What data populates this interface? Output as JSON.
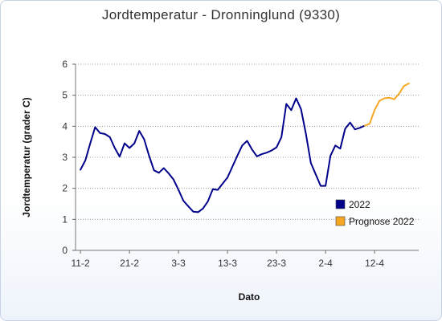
{
  "chart_data": {
    "type": "line",
    "title": "Jordtemperatur - Dronninglund (9330)",
    "xlabel": "Dato",
    "ylabel": "Jordtemperatur (grader C)",
    "ylim": [
      0,
      6
    ],
    "yticks": [
      0,
      1,
      2,
      3,
      4,
      5,
      6
    ],
    "x_tick_labels": [
      "11-2",
      "21-2",
      "3-3",
      "13-3",
      "23-3",
      "2-4",
      "12-4"
    ],
    "grid": "horizontal dotted",
    "legend_position": "right",
    "series": [
      {
        "name": "2022",
        "color": "#00008b",
        "points": [
          [
            1,
            2.6
          ],
          [
            2,
            2.9
          ],
          [
            3,
            3.45
          ],
          [
            4,
            3.97
          ],
          [
            5,
            3.78
          ],
          [
            6,
            3.75
          ],
          [
            7,
            3.65
          ],
          [
            8,
            3.3
          ],
          [
            9,
            3.02
          ],
          [
            10,
            3.45
          ],
          [
            11,
            3.3
          ],
          [
            12,
            3.45
          ],
          [
            13,
            3.85
          ],
          [
            14,
            3.58
          ],
          [
            15,
            3.05
          ],
          [
            16,
            2.58
          ],
          [
            17,
            2.5
          ],
          [
            18,
            2.65
          ],
          [
            19,
            2.48
          ],
          [
            20,
            2.28
          ],
          [
            21,
            1.95
          ],
          [
            22,
            1.6
          ],
          [
            23,
            1.42
          ],
          [
            24,
            1.25
          ],
          [
            25,
            1.23
          ],
          [
            26,
            1.35
          ],
          [
            27,
            1.58
          ],
          [
            28,
            1.97
          ],
          [
            29,
            1.95
          ],
          [
            30,
            2.15
          ],
          [
            31,
            2.35
          ],
          [
            32,
            2.7
          ],
          [
            33,
            3.05
          ],
          [
            34,
            3.38
          ],
          [
            35,
            3.53
          ],
          [
            36,
            3.25
          ],
          [
            37,
            3.03
          ],
          [
            38,
            3.1
          ],
          [
            39,
            3.15
          ],
          [
            40,
            3.22
          ],
          [
            41,
            3.32
          ],
          [
            42,
            3.65
          ],
          [
            43,
            4.72
          ],
          [
            44,
            4.52
          ],
          [
            45,
            4.9
          ],
          [
            46,
            4.55
          ],
          [
            47,
            3.75
          ],
          [
            48,
            2.82
          ],
          [
            49,
            2.45
          ],
          [
            50,
            2.08
          ],
          [
            51,
            2.08
          ],
          [
            52,
            3.05
          ],
          [
            53,
            3.38
          ],
          [
            54,
            3.28
          ],
          [
            55,
            3.92
          ],
          [
            56,
            4.12
          ],
          [
            57,
            3.9
          ],
          [
            58,
            3.95
          ],
          [
            59,
            4.02
          ]
        ]
      },
      {
        "name": "Prognose 2022",
        "color": "#f5a623",
        "points": [
          [
            59,
            4.02
          ],
          [
            60,
            4.08
          ],
          [
            61,
            4.52
          ],
          [
            62,
            4.82
          ],
          [
            63,
            4.9
          ],
          [
            64,
            4.92
          ],
          [
            65,
            4.87
          ],
          [
            66,
            5.05
          ],
          [
            67,
            5.3
          ],
          [
            68,
            5.38
          ]
        ]
      }
    ]
  }
}
